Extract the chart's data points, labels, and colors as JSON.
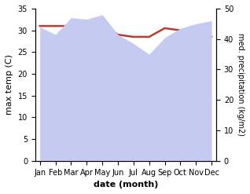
{
  "months": [
    "Jan",
    "Feb",
    "Mar",
    "Apr",
    "May",
    "Jun",
    "Jul",
    "Aug",
    "Sep",
    "Oct",
    "Nov",
    "Dec"
  ],
  "month_indices": [
    0,
    1,
    2,
    3,
    4,
    5,
    6,
    7,
    8,
    9,
    10,
    11
  ],
  "temperature": [
    31.0,
    31.0,
    31.0,
    31.5,
    31.5,
    29.0,
    28.5,
    28.5,
    30.5,
    30.0,
    30.0,
    28.5
  ],
  "precipitation": [
    44.0,
    41.5,
    47.0,
    46.5,
    48.0,
    41.5,
    38.5,
    35.0,
    40.5,
    43.5,
    45.0,
    46.0
  ],
  "temp_color": "#c0392b",
  "precip_fill_color": "#c5caf0",
  "xlabel": "date (month)",
  "ylabel_left": "max temp (C)",
  "ylabel_right": "med. precipitation (kg/m2)",
  "ylim_left": [
    0,
    35
  ],
  "ylim_right": [
    0,
    50
  ],
  "yticks_left": [
    0,
    5,
    10,
    15,
    20,
    25,
    30,
    35
  ],
  "yticks_right": [
    0,
    10,
    20,
    30,
    40,
    50
  ],
  "background_color": "#ffffff"
}
